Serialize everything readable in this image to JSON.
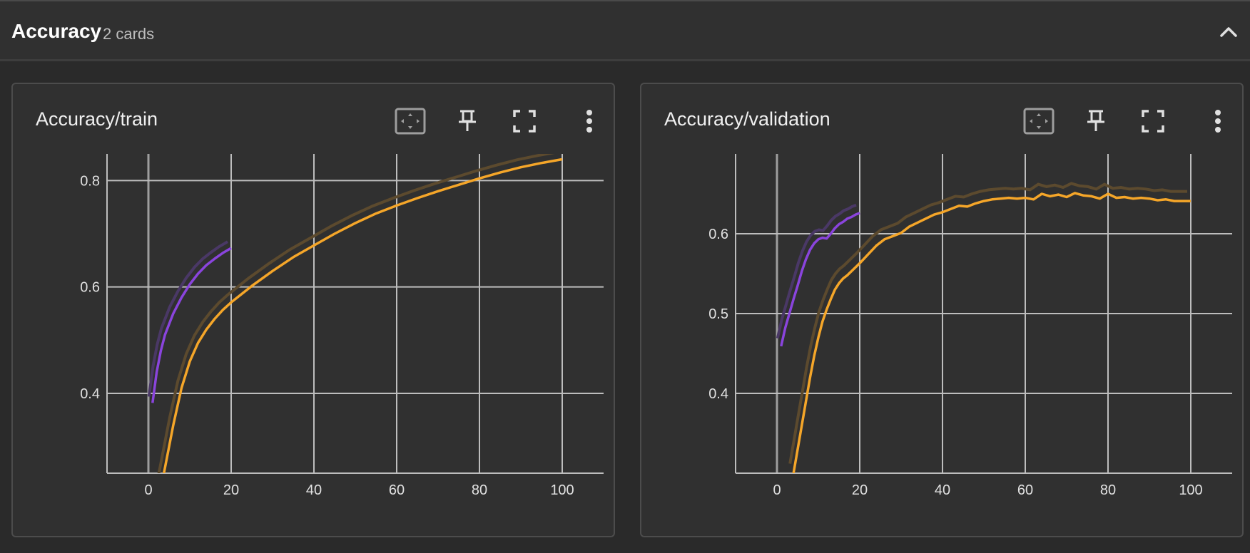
{
  "group": {
    "title": "Accuracy",
    "count": "2 cards"
  },
  "colors": {
    "purple": "#8a44dd",
    "orange": "#f5a629",
    "purple_raw": "#4a3866",
    "orange_raw": "#5c4a2e",
    "grid": "#bdbdbd",
    "axis": "#9e9e9e"
  },
  "cards": [
    {
      "title": "Accuracy/train",
      "toolbar": [
        "fit-domain-icon",
        "pin-icon",
        "fullscreen-icon",
        "more-vert-icon"
      ]
    },
    {
      "title": "Accuracy/validation",
      "toolbar": [
        "fit-domain-icon",
        "pin-icon",
        "fullscreen-icon",
        "more-vert-icon"
      ]
    }
  ],
  "chart_data": [
    {
      "type": "line",
      "title": "Accuracy/train",
      "xlim": [
        -10,
        110
      ],
      "ylim": [
        0.25,
        0.85
      ],
      "xticks": [
        "0",
        "20",
        "40",
        "60",
        "80",
        "100"
      ],
      "xtick_values": [
        0,
        20,
        40,
        60,
        80,
        100
      ],
      "yticks": [
        "0.4",
        "0.6",
        "0.8"
      ],
      "ytick_values": [
        0.4,
        0.6,
        0.8
      ],
      "grid": true,
      "series": [
        {
          "color": "purple",
          "raw_offset": 0.012,
          "x": [
            1,
            2,
            3,
            4,
            5,
            6,
            8,
            10,
            12,
            14,
            16,
            18,
            20
          ],
          "y": [
            0.382,
            0.44,
            0.48,
            0.51,
            0.53,
            0.55,
            0.58,
            0.605,
            0.625,
            0.641,
            0.653,
            0.664,
            0.673
          ]
        },
        {
          "color": "orange",
          "raw_offset": 0.014,
          "x": [
            3,
            4,
            5,
            6,
            8,
            10,
            12,
            14,
            16,
            18,
            20,
            25,
            30,
            35,
            40,
            45,
            50,
            55,
            60,
            65,
            70,
            75,
            80,
            85,
            90,
            95,
            100
          ],
          "y": [
            0.22,
            0.26,
            0.3,
            0.34,
            0.41,
            0.46,
            0.495,
            0.52,
            0.54,
            0.557,
            0.571,
            0.602,
            0.63,
            0.656,
            0.678,
            0.7,
            0.72,
            0.738,
            0.753,
            0.767,
            0.78,
            0.792,
            0.804,
            0.815,
            0.825,
            0.833,
            0.84
          ]
        }
      ]
    },
    {
      "type": "line",
      "title": "Accuracy/validation",
      "xlim": [
        -10,
        110
      ],
      "ylim": [
        0.3,
        0.7
      ],
      "xticks": [
        "0",
        "20",
        "40",
        "60",
        "80",
        "100"
      ],
      "xtick_values": [
        0,
        20,
        40,
        60,
        80,
        100
      ],
      "yticks": [
        "0.4",
        "0.5",
        "0.6"
      ],
      "ytick_values": [
        0.4,
        0.5,
        0.6
      ],
      "grid": true,
      "series": [
        {
          "color": "purple",
          "raw_offset": 0.01,
          "x": [
            1,
            2,
            3,
            4,
            5,
            6,
            7,
            8,
            9,
            10,
            11,
            12,
            13,
            14,
            15,
            16,
            17,
            18,
            19,
            20
          ],
          "y": [
            0.459,
            0.482,
            0.5,
            0.518,
            0.535,
            0.553,
            0.568,
            0.58,
            0.588,
            0.593,
            0.595,
            0.594,
            0.6,
            0.607,
            0.612,
            0.615,
            0.619,
            0.621,
            0.624,
            0.626
          ]
        },
        {
          "color": "orange",
          "raw_offset": 0.012,
          "x": [
            4,
            5,
            6,
            7,
            8,
            9,
            10,
            11,
            12,
            13,
            14,
            15,
            16,
            17,
            18,
            19,
            20,
            22,
            24,
            26,
            28,
            30,
            32,
            34,
            36,
            38,
            40,
            42,
            44,
            46,
            48,
            50,
            52,
            54,
            56,
            58,
            60,
            62,
            64,
            66,
            68,
            70,
            72,
            74,
            76,
            78,
            80,
            82,
            84,
            86,
            88,
            90,
            92,
            94,
            96,
            98,
            100
          ],
          "y": [
            0.3,
            0.33,
            0.36,
            0.39,
            0.42,
            0.447,
            0.47,
            0.49,
            0.505,
            0.518,
            0.53,
            0.538,
            0.544,
            0.548,
            0.553,
            0.558,
            0.563,
            0.574,
            0.585,
            0.593,
            0.597,
            0.601,
            0.609,
            0.614,
            0.619,
            0.624,
            0.627,
            0.631,
            0.635,
            0.634,
            0.638,
            0.641,
            0.643,
            0.644,
            0.645,
            0.644,
            0.645,
            0.643,
            0.65,
            0.647,
            0.649,
            0.646,
            0.651,
            0.648,
            0.647,
            0.644,
            0.65,
            0.645,
            0.646,
            0.644,
            0.645,
            0.644,
            0.642,
            0.643,
            0.641,
            0.641,
            0.641
          ]
        }
      ]
    }
  ]
}
